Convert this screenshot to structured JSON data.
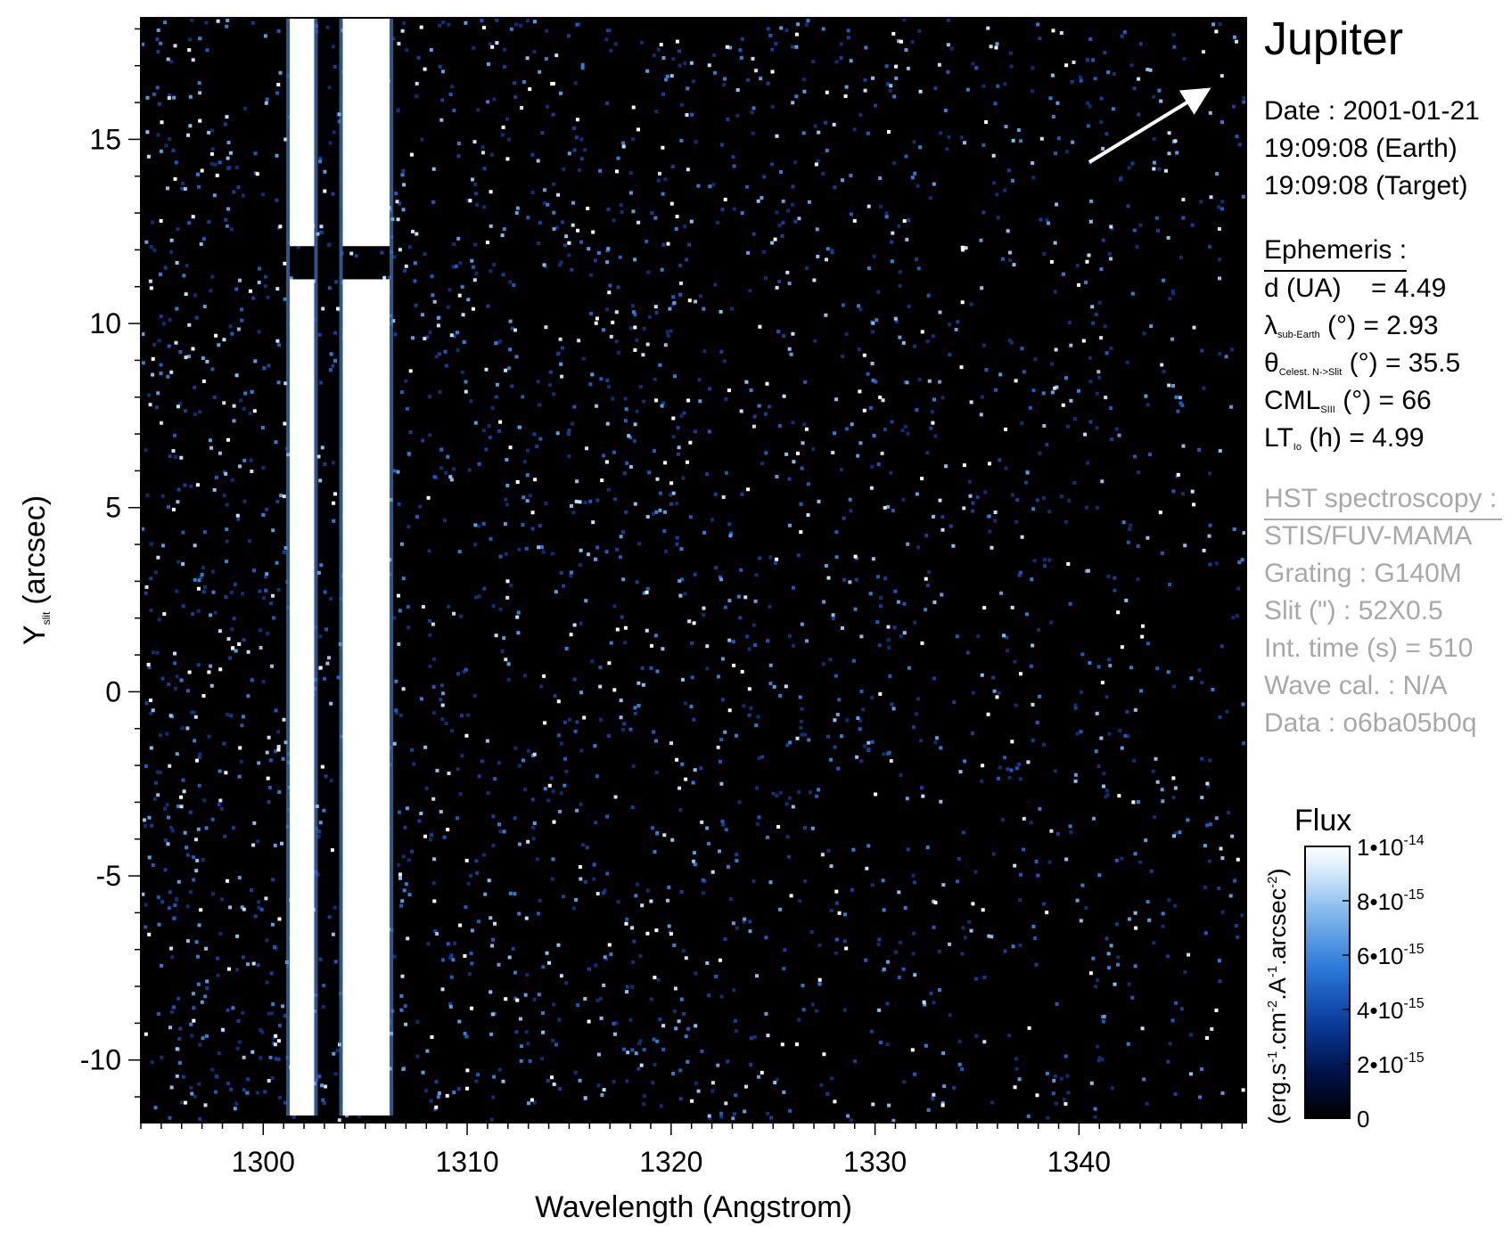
{
  "chart_data": {
    "type": "heatmap",
    "title": "",
    "xlabel": "Wavelength (Angstrom)",
    "ylabel_main": "Y",
    "ylabel_sub": "slit",
    "ylabel_unit": "(arcsec)",
    "xlim": [
      1294,
      1348.2
    ],
    "ylim": [
      -11.7,
      18.3
    ],
    "xticks": [
      1300,
      1310,
      1320,
      1330,
      1340
    ],
    "yticks": [
      -10,
      -5,
      0,
      5,
      10,
      15
    ],
    "emission_bands": [
      {
        "x_start": 1301.3,
        "x_end": 1302.5
      },
      {
        "x_start": 1303.9,
        "x_end": 1306.2
      }
    ],
    "band_gap_y": [
      11.2,
      12.1
    ],
    "arrow_direction": "upper-right",
    "colorbar": {
      "title": "Flux",
      "unit": "(erg.s-1.cm-2.A-1.arcsec-2)",
      "min": 0,
      "max": 1e-14,
      "ticks": [
        {
          "value": 0,
          "base": "0",
          "exp": ""
        },
        {
          "value": 2e-15,
          "base": "2•10",
          "exp": "-15"
        },
        {
          "value": 4e-15,
          "base": "4•10",
          "exp": "-15"
        },
        {
          "value": 6e-15,
          "base": "6•10",
          "exp": "-15"
        },
        {
          "value": 8e-15,
          "base": "8•10",
          "exp": "-15"
        },
        {
          "value": 1e-14,
          "base": "1•10",
          "exp": "-14"
        }
      ],
      "colors": [
        "#000000",
        "#01124a",
        "#0a3c9a",
        "#2b78d8",
        "#7fb6ea",
        "#dcedfb",
        "#ffffff"
      ]
    }
  },
  "info": {
    "target": "Jupiter",
    "date": "Date : 2001-01-21",
    "time_earth": "19:09:08 (Earth)",
    "time_target": "19:09:08 (Target)",
    "ephemeris_heading": "Ephemeris :",
    "d_label": "d (UA)",
    "d_value": "= 4.49",
    "lambda_symbol": "λ",
    "lambda_sub": "sub-Earth",
    "lambda_value": "(°)  = 2.93",
    "theta_symbol": "θ",
    "theta_sub": "Celest. N->Slit",
    "theta_value": "(°) = 35.5",
    "cml_label": "CML",
    "cml_sub": "SIII",
    "cml_value": "(°) = 66",
    "lt_label": "LT",
    "lt_sub": "Io",
    "lt_value": "(h) = 4.99",
    "hst_heading": "HST spectroscopy :",
    "instrument": "STIS/FUV-MAMA",
    "grating": "Grating : G140M",
    "slit": "Slit (\") : 52X0.5",
    "int_time": "Int. time (s) = 510",
    "wave_cal": "Wave cal. : N/A",
    "dataset": "Data : o6ba05b0q"
  }
}
